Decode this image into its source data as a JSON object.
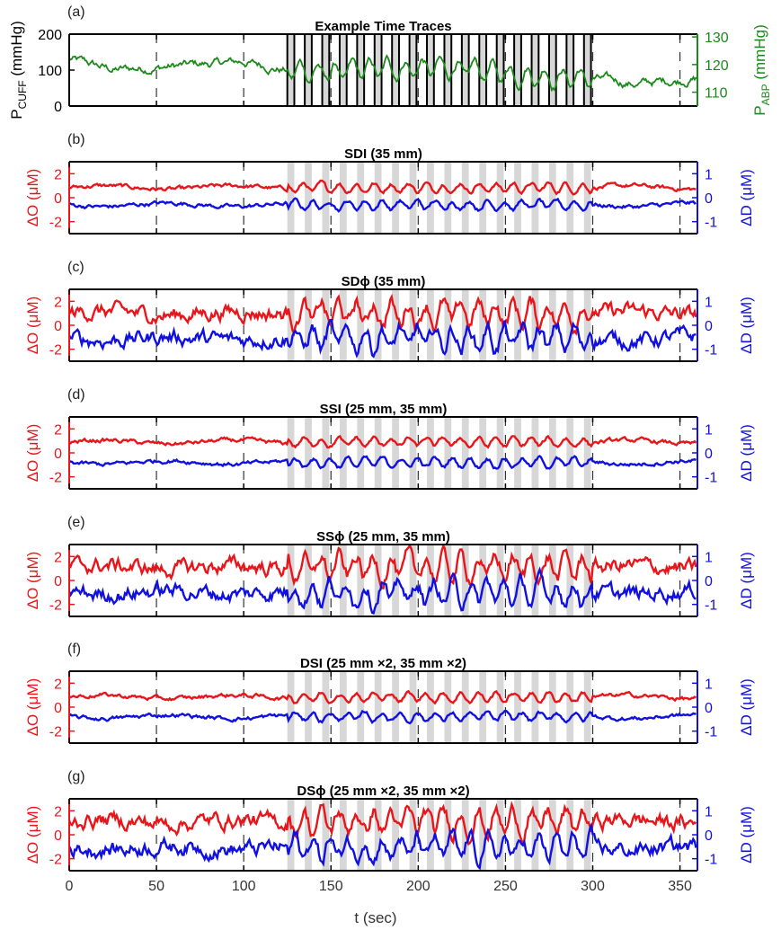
{
  "figure": {
    "xlabel": "t (sec)",
    "xticks": [
      "0",
      "50",
      "100",
      "150",
      "200",
      "250",
      "300",
      "350"
    ],
    "xlim": [
      0,
      360
    ],
    "colors": {
      "cuff": "#000000",
      "abp": "#1a8a1a",
      "oxy": "#e8161b",
      "deoxy": "#1010e0",
      "shade": "#d7d7d7",
      "axis": "#000000"
    }
  },
  "chart_data": [
    {
      "type": "line",
      "panel_label": "(a)",
      "title": "Example Time Traces",
      "xlim": [
        0,
        360
      ],
      "left_axis": {
        "label_main": "P",
        "label_sub": "CUFF",
        "label_unit": " (mmHg)",
        "ylim": [
          0,
          200
        ],
        "ticks": [
          "0",
          "100",
          "200"
        ]
      },
      "right_axis": {
        "label_main": "P",
        "label_sub": "ABP",
        "label_unit": " (mmHg)",
        "ylim": [
          105,
          131
        ],
        "ticks": [
          "110",
          "120",
          "130"
        ]
      },
      "cuff_inflation_periods": [
        [
          125,
          129
        ],
        [
          135,
          139
        ],
        [
          145,
          149
        ],
        [
          155,
          159
        ],
        [
          165,
          169
        ],
        [
          175,
          179
        ],
        [
          185,
          189
        ],
        [
          195,
          199
        ],
        [
          205,
          209
        ],
        [
          215,
          219
        ],
        [
          225,
          229
        ],
        [
          235,
          239
        ],
        [
          245,
          249
        ],
        [
          255,
          259
        ],
        [
          265,
          269
        ],
        [
          275,
          279
        ],
        [
          285,
          289
        ],
        [
          295,
          299
        ]
      ],
      "series": [
        {
          "axis": "left",
          "color": "#000000",
          "baseline": 0,
          "peak": 200
        },
        {
          "axis": "right",
          "color": "#1a8a1a",
          "baseline_x": [
            0,
            25,
            50,
            100,
            125,
            150,
            200,
            250,
            300,
            325,
            360
          ],
          "baseline_y": [
            122,
            118,
            119,
            121,
            118,
            117,
            119,
            117,
            115,
            113,
            115
          ]
        }
      ]
    },
    {
      "type": "line",
      "panel_label": "(b)",
      "title": "SDI (35 mm)",
      "left_axis": {
        "label": "ΔO (μM)",
        "ylim": [
          -3,
          3
        ],
        "ticks": [
          "-2",
          "0",
          "2"
        ]
      },
      "right_axis": {
        "label": "ΔD (μM)",
        "ylim": [
          -1.5,
          1.5
        ],
        "ticks": [
          "-1",
          "0",
          "1"
        ]
      },
      "series": [
        {
          "name": "ΔO",
          "axis": "left",
          "color": "#e8161b",
          "mean": 0.85
        },
        {
          "name": "ΔD",
          "axis": "right",
          "color": "#1010e0",
          "mean": -0.3
        }
      ]
    },
    {
      "type": "line",
      "panel_label": "(c)",
      "title": "SDϕ (35 mm)",
      "left_axis": {
        "label": "ΔO (μM)",
        "ylim": [
          -3,
          3
        ],
        "ticks": [
          "-2",
          "0",
          "2"
        ]
      },
      "right_axis": {
        "label": "ΔD (μM)",
        "ylim": [
          -1.5,
          1.5
        ],
        "ticks": [
          "-1",
          "0",
          "1"
        ]
      },
      "series": [
        {
          "name": "ΔO",
          "axis": "left",
          "color": "#e8161b",
          "mean": 1.0
        },
        {
          "name": "ΔD",
          "axis": "right",
          "color": "#1010e0",
          "mean": -0.55
        }
      ]
    },
    {
      "type": "line",
      "panel_label": "(d)",
      "title": "SSI (25 mm, 35 mm)",
      "left_axis": {
        "label": "ΔO (μM)",
        "ylim": [
          -3,
          3
        ],
        "ticks": [
          "-2",
          "0",
          "2"
        ]
      },
      "right_axis": {
        "label": "ΔD (μM)",
        "ylim": [
          -1.5,
          1.5
        ],
        "ticks": [
          "-1",
          "0",
          "1"
        ]
      },
      "series": [
        {
          "name": "ΔO",
          "axis": "left",
          "color": "#e8161b",
          "mean": 0.9
        },
        {
          "name": "ΔD",
          "axis": "right",
          "color": "#1010e0",
          "mean": -0.4
        }
      ]
    },
    {
      "type": "line",
      "panel_label": "(e)",
      "title": "SSϕ (25 mm, 35 mm)",
      "left_axis": {
        "label": "ΔO (μM)",
        "ylim": [
          -3,
          3
        ],
        "ticks": [
          "-2",
          "0",
          "2"
        ]
      },
      "right_axis": {
        "label": "ΔD (μM)",
        "ylim": [
          -1.5,
          1.5
        ],
        "ticks": [
          "-1",
          "0",
          "1"
        ]
      },
      "series": [
        {
          "name": "ΔO",
          "axis": "left",
          "color": "#e8161b",
          "mean": 1.1
        },
        {
          "name": "ΔD",
          "axis": "right",
          "color": "#1010e0",
          "mean": -0.5
        }
      ]
    },
    {
      "type": "line",
      "panel_label": "(f)",
      "title": "DSI (25 mm ×2, 35 mm ×2)",
      "left_axis": {
        "label": "ΔO (μM)",
        "ylim": [
          -3,
          3
        ],
        "ticks": [
          "-2",
          "0",
          "2"
        ]
      },
      "right_axis": {
        "label": "ΔD (μM)",
        "ylim": [
          -1.5,
          1.5
        ],
        "ticks": [
          "-1",
          "0",
          "1"
        ]
      },
      "series": [
        {
          "name": "ΔO",
          "axis": "left",
          "color": "#e8161b",
          "mean": 0.85
        },
        {
          "name": "ΔD",
          "axis": "right",
          "color": "#1010e0",
          "mean": -0.4
        }
      ]
    },
    {
      "type": "line",
      "panel_label": "(g)",
      "title": "DSϕ (25 mm ×2, 35 mm ×2)",
      "left_axis": {
        "label": "ΔO (μM)",
        "ylim": [
          -3,
          3
        ],
        "ticks": [
          "-2",
          "0",
          "2"
        ]
      },
      "right_axis": {
        "label": "ΔD (μM)",
        "ylim": [
          -1.5,
          1.5
        ],
        "ticks": [
          "-1",
          "0",
          "1"
        ]
      },
      "series": [
        {
          "name": "ΔO",
          "axis": "left",
          "color": "#e8161b",
          "mean": 1.1
        },
        {
          "name": "ΔD",
          "axis": "right",
          "color": "#1010e0",
          "mean": -0.55
        }
      ]
    }
  ]
}
